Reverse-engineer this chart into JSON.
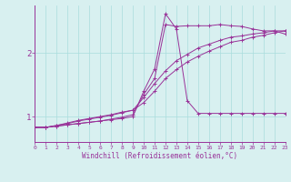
{
  "xlabel": "Windchill (Refroidissement éolien,°C)",
  "background_color": "#d8f0f0",
  "line_color": "#993399",
  "grid_color": "#aadddd",
  "xmin": 0,
  "xmax": 23,
  "ymin": 0.6,
  "ymax": 2.75,
  "yticks": [
    1,
    2
  ],
  "curves": [
    {
      "x": [
        0,
        1,
        2,
        3,
        4,
        5,
        6,
        7,
        8,
        9,
        10,
        11,
        12,
        13,
        14,
        15,
        16,
        17,
        18,
        19,
        20,
        21,
        22,
        23
      ],
      "y": [
        0.83,
        0.83,
        0.85,
        0.87,
        0.89,
        0.91,
        0.93,
        0.95,
        0.97,
        1.0,
        1.4,
        1.75,
        2.62,
        2.38,
        1.25,
        1.05,
        1.05,
        1.05,
        1.05,
        1.05,
        1.05,
        1.05,
        1.05,
        1.05
      ]
    },
    {
      "x": [
        0,
        1,
        2,
        3,
        4,
        5,
        6,
        7,
        8,
        9,
        10,
        11,
        12,
        13,
        14,
        15,
        16,
        17,
        18,
        19,
        20,
        21,
        22,
        23
      ],
      "y": [
        0.83,
        0.83,
        0.85,
        0.87,
        0.89,
        0.91,
        0.93,
        0.96,
        0.99,
        1.03,
        1.35,
        1.6,
        2.45,
        2.42,
        2.43,
        2.43,
        2.43,
        2.45,
        2.43,
        2.42,
        2.38,
        2.35,
        2.35,
        2.3
      ]
    },
    {
      "x": [
        0,
        1,
        2,
        3,
        4,
        5,
        6,
        7,
        8,
        9,
        10,
        11,
        12,
        13,
        14,
        15,
        16,
        17,
        18,
        19,
        20,
        21,
        22,
        23
      ],
      "y": [
        0.83,
        0.83,
        0.86,
        0.9,
        0.94,
        0.97,
        1.0,
        1.03,
        1.07,
        1.1,
        1.3,
        1.52,
        1.72,
        1.88,
        1.98,
        2.08,
        2.14,
        2.2,
        2.25,
        2.27,
        2.3,
        2.32,
        2.35,
        2.35
      ]
    },
    {
      "x": [
        0,
        1,
        2,
        3,
        4,
        5,
        6,
        7,
        8,
        9,
        10,
        11,
        12,
        13,
        14,
        15,
        16,
        17,
        18,
        19,
        20,
        21,
        22,
        23
      ],
      "y": [
        0.83,
        0.83,
        0.86,
        0.89,
        0.93,
        0.96,
        0.99,
        1.02,
        1.06,
        1.1,
        1.22,
        1.4,
        1.6,
        1.74,
        1.86,
        1.95,
        2.03,
        2.1,
        2.17,
        2.2,
        2.25,
        2.28,
        2.32,
        2.35
      ]
    }
  ]
}
